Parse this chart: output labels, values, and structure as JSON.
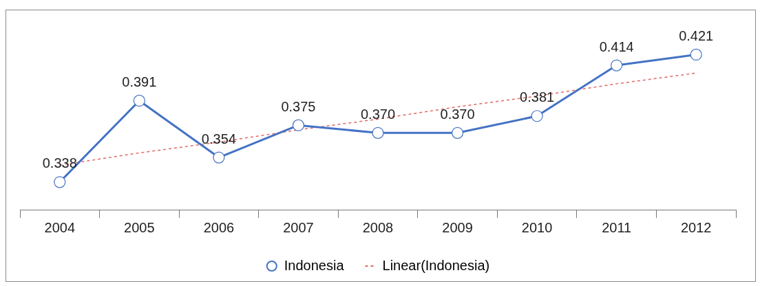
{
  "chart_data": {
    "type": "line",
    "categories": [
      "2004",
      "2005",
      "2006",
      "2007",
      "2008",
      "2009",
      "2010",
      "2011",
      "2012"
    ],
    "series": [
      {
        "name": "Indonesia",
        "color": "#4472c4",
        "values": [
          0.338,
          0.391,
          0.354,
          0.375,
          0.37,
          0.37,
          0.381,
          0.414,
          0.421
        ],
        "value_labels": [
          "0.338",
          "0.391",
          "0.354",
          "0.375",
          "0.370",
          "0.370",
          "0.381",
          "0.414",
          "0.421"
        ],
        "marker": "circle",
        "line_style": "solid"
      },
      {
        "name": "Linear(Indonesia)",
        "color": "#e06666",
        "values": [
          0.349,
          0.357,
          0.364,
          0.372,
          0.379,
          0.387,
          0.394,
          0.402,
          0.409
        ],
        "marker": "none",
        "line_style": "dashed"
      }
    ],
    "tick_labels": "x",
    "grid": false,
    "legend": "bottom"
  }
}
